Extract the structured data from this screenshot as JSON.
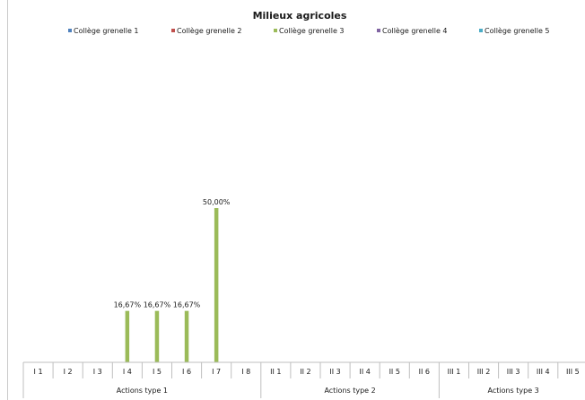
{
  "chart_data": {
    "type": "bar",
    "title": "Milieux agricoles",
    "legend_position": "top",
    "grid": false,
    "ylim": [
      0,
      100
    ],
    "categories": [
      "I 1",
      "I 2",
      "I 3",
      "I 4",
      "I 5",
      "I 6",
      "I 7",
      "I 8",
      "II 1",
      "II 2",
      "II 3",
      "II 4",
      "II 5",
      "II 6",
      "III 1",
      "III 2",
      "III 3",
      "III 4",
      "III 5"
    ],
    "category_groups": [
      {
        "label": "Actions type 1",
        "count": 8
      },
      {
        "label": "Actions type 2",
        "count": 6
      },
      {
        "label": "Actions type 3",
        "count": 5
      }
    ],
    "series": [
      {
        "name": "Collège grenelle 1",
        "color": "#4f81bd",
        "values": [
          0,
          0,
          0,
          0,
          0,
          0,
          0,
          0,
          0,
          0,
          0,
          0,
          0,
          0,
          0,
          0,
          0,
          0,
          0
        ]
      },
      {
        "name": "Collège grenelle 2",
        "color": "#c0504d",
        "values": [
          0,
          0,
          0,
          0,
          0,
          0,
          0,
          0,
          0,
          0,
          0,
          0,
          0,
          0,
          0,
          0,
          0,
          0,
          0
        ]
      },
      {
        "name": "Collège grenelle 3",
        "color": "#9bbb59",
        "values": [
          0,
          0,
          0,
          16.67,
          16.67,
          16.67,
          50,
          0,
          0,
          0,
          0,
          0,
          0,
          0,
          0,
          0,
          0,
          0,
          0
        ],
        "data_labels": [
          null,
          null,
          null,
          "16,67%",
          "16,67%",
          "16,67%",
          "50,00%",
          null,
          null,
          null,
          null,
          null,
          null,
          null,
          null,
          null,
          null,
          null,
          null
        ]
      },
      {
        "name": "Collège grenelle 4",
        "color": "#8064a2",
        "values": [
          0,
          0,
          0,
          0,
          0,
          0,
          0,
          0,
          0,
          0,
          0,
          0,
          0,
          0,
          0,
          0,
          0,
          0,
          0
        ]
      },
      {
        "name": "Collège grenelle 5",
        "color": "#4bacc6",
        "values": [
          0,
          0,
          0,
          0,
          0,
          0,
          0,
          0,
          0,
          0,
          0,
          0,
          0,
          0,
          0,
          0,
          0,
          0,
          0
        ]
      }
    ]
  }
}
